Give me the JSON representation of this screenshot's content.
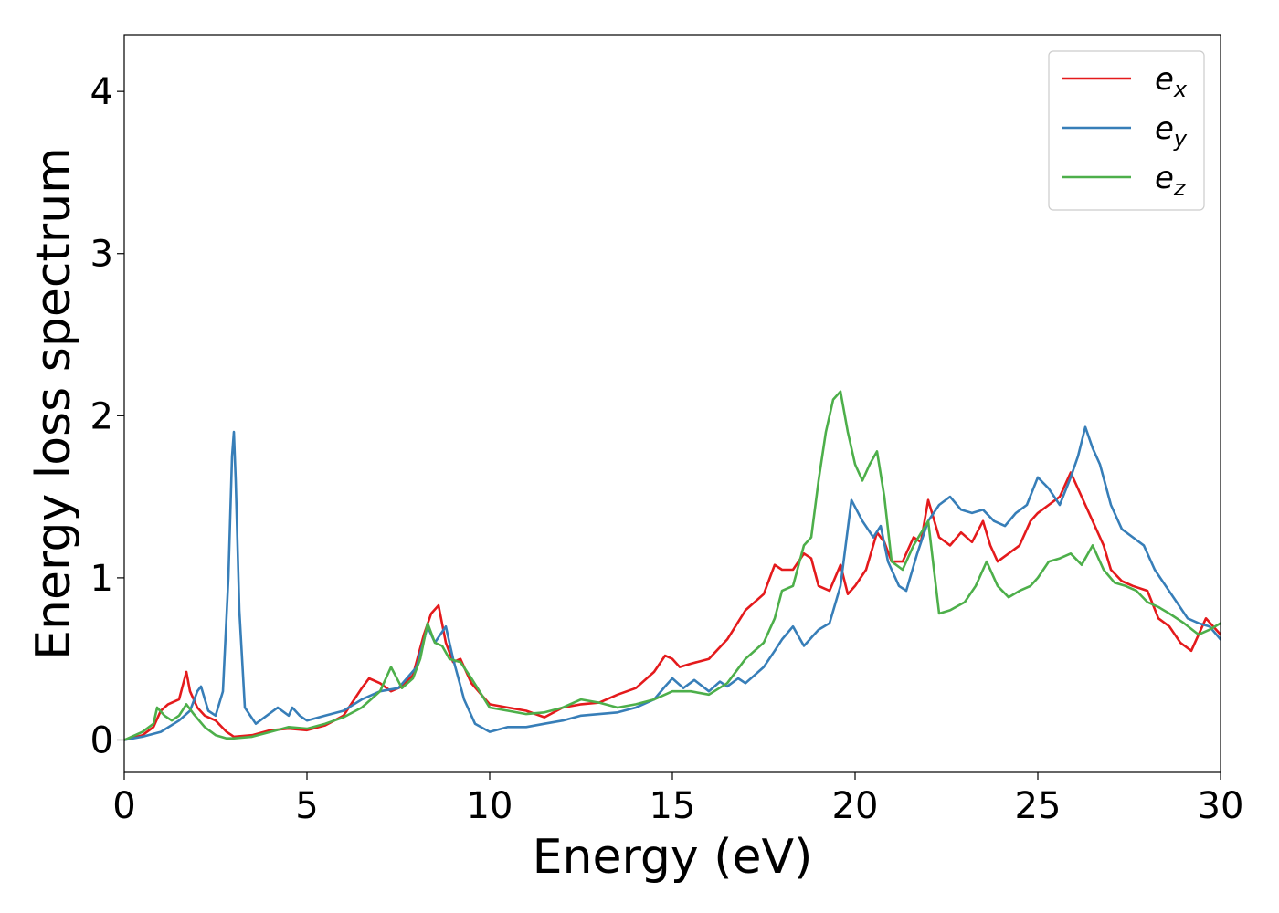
{
  "chart_data": {
    "type": "line",
    "title": "",
    "xlabel": "Energy (eV)",
    "ylabel": "Energy loss spectrum",
    "xlim": [
      0,
      30
    ],
    "ylim": [
      -0.2,
      4.35
    ],
    "xticks": [
      0,
      5,
      10,
      15,
      20,
      25,
      30
    ],
    "yticks": [
      0,
      1,
      2,
      3,
      4
    ],
    "grid": false,
    "legend": "top-right",
    "series": [
      {
        "name": "e",
        "sub": "x",
        "color": "#e41a1c",
        "x": [
          0,
          0.5,
          0.8,
          1.0,
          1.2,
          1.5,
          1.7,
          1.8,
          2.0,
          2.2,
          2.5,
          2.8,
          3.0,
          3.5,
          4.0,
          4.5,
          5.0,
          5.5,
          6.0,
          6.5,
          6.7,
          7.0,
          7.3,
          7.6,
          7.9,
          8.2,
          8.4,
          8.6,
          8.8,
          9.0,
          9.2,
          9.5,
          10.0,
          10.5,
          11.0,
          11.5,
          12.0,
          12.5,
          13.0,
          13.5,
          14.0,
          14.5,
          14.8,
          15.0,
          15.2,
          15.5,
          16.0,
          16.5,
          17.0,
          17.5,
          17.8,
          18.0,
          18.3,
          18.6,
          18.8,
          19.0,
          19.3,
          19.6,
          19.8,
          20.0,
          20.3,
          20.6,
          20.8,
          21.0,
          21.3,
          21.6,
          21.8,
          22.0,
          22.3,
          22.6,
          22.9,
          23.2,
          23.5,
          23.7,
          23.9,
          24.2,
          24.5,
          24.8,
          25.0,
          25.3,
          25.6,
          25.9,
          26.2,
          26.5,
          26.8,
          27.0,
          27.3,
          27.6,
          28.0,
          28.3,
          28.6,
          28.9,
          29.2,
          29.6,
          30.0
        ],
        "y": [
          0,
          0.03,
          0.08,
          0.18,
          0.22,
          0.25,
          0.42,
          0.3,
          0.2,
          0.15,
          0.12,
          0.05,
          0.02,
          0.03,
          0.06,
          0.07,
          0.06,
          0.09,
          0.15,
          0.32,
          0.38,
          0.35,
          0.3,
          0.33,
          0.4,
          0.65,
          0.78,
          0.83,
          0.6,
          0.48,
          0.5,
          0.35,
          0.22,
          0.2,
          0.18,
          0.14,
          0.2,
          0.22,
          0.23,
          0.28,
          0.32,
          0.42,
          0.52,
          0.5,
          0.45,
          0.47,
          0.5,
          0.62,
          0.8,
          0.9,
          1.08,
          1.05,
          1.05,
          1.15,
          1.12,
          0.95,
          0.92,
          1.08,
          0.9,
          0.95,
          1.05,
          1.28,
          1.22,
          1.1,
          1.1,
          1.25,
          1.22,
          1.48,
          1.25,
          1.2,
          1.28,
          1.22,
          1.35,
          1.2,
          1.1,
          1.15,
          1.2,
          1.35,
          1.4,
          1.45,
          1.5,
          1.65,
          1.5,
          1.35,
          1.2,
          1.05,
          0.98,
          0.95,
          0.92,
          0.75,
          0.7,
          0.6,
          0.55,
          0.75,
          0.65
        ]
      },
      {
        "name": "e",
        "sub": "y",
        "color": "#377eb8",
        "x": [
          0,
          0.5,
          1.0,
          1.5,
          1.8,
          2.0,
          2.1,
          2.3,
          2.5,
          2.7,
          2.85,
          2.95,
          3.0,
          3.05,
          3.15,
          3.3,
          3.6,
          3.9,
          4.2,
          4.5,
          4.6,
          4.8,
          5.0,
          5.5,
          6.0,
          6.5,
          7.0,
          7.5,
          8.0,
          8.3,
          8.5,
          8.8,
          9.0,
          9.3,
          9.6,
          10.0,
          10.5,
          11.0,
          11.5,
          12.0,
          12.5,
          13.0,
          13.5,
          14.0,
          14.5,
          14.8,
          15.0,
          15.3,
          15.6,
          16.0,
          16.3,
          16.5,
          16.8,
          17.0,
          17.5,
          17.8,
          18.0,
          18.3,
          18.6,
          19.0,
          19.3,
          19.6,
          19.9,
          20.2,
          20.5,
          20.7,
          20.9,
          21.2,
          21.4,
          21.7,
          22.0,
          22.3,
          22.6,
          22.9,
          23.2,
          23.5,
          23.8,
          24.1,
          24.4,
          24.7,
          25.0,
          25.3,
          25.6,
          25.9,
          26.1,
          26.3,
          26.5,
          26.7,
          27.0,
          27.3,
          27.6,
          27.9,
          28.2,
          28.5,
          28.8,
          29.1,
          29.4,
          29.7,
          30.0
        ],
        "y": [
          0,
          0.02,
          0.05,
          0.12,
          0.18,
          0.3,
          0.33,
          0.18,
          0.15,
          0.3,
          1.0,
          1.75,
          1.9,
          1.6,
          0.8,
          0.2,
          0.1,
          0.15,
          0.2,
          0.15,
          0.2,
          0.15,
          0.12,
          0.15,
          0.18,
          0.25,
          0.3,
          0.32,
          0.45,
          0.7,
          0.6,
          0.7,
          0.5,
          0.25,
          0.1,
          0.05,
          0.08,
          0.08,
          0.1,
          0.12,
          0.15,
          0.16,
          0.17,
          0.2,
          0.25,
          0.33,
          0.38,
          0.32,
          0.37,
          0.3,
          0.36,
          0.33,
          0.38,
          0.35,
          0.45,
          0.55,
          0.62,
          0.7,
          0.58,
          0.68,
          0.72,
          0.95,
          1.48,
          1.35,
          1.25,
          1.32,
          1.1,
          0.95,
          0.92,
          1.15,
          1.35,
          1.45,
          1.5,
          1.42,
          1.4,
          1.42,
          1.35,
          1.32,
          1.4,
          1.45,
          1.62,
          1.55,
          1.45,
          1.62,
          1.75,
          1.93,
          1.8,
          1.7,
          1.45,
          1.3,
          1.25,
          1.2,
          1.05,
          0.95,
          0.85,
          0.75,
          0.72,
          0.7,
          0.62
        ]
      },
      {
        "name": "e",
        "sub": "z",
        "color": "#4daf4a",
        "x": [
          0,
          0.5,
          0.8,
          0.9,
          1.1,
          1.3,
          1.5,
          1.7,
          1.9,
          2.2,
          2.5,
          2.8,
          3.0,
          3.5,
          4.0,
          4.5,
          5.0,
          5.5,
          6.0,
          6.5,
          7.0,
          7.3,
          7.6,
          7.9,
          8.1,
          8.3,
          8.5,
          8.7,
          8.9,
          9.2,
          9.5,
          10.0,
          10.5,
          11.0,
          11.5,
          12.0,
          12.5,
          13.0,
          13.5,
          14.0,
          14.5,
          15.0,
          15.5,
          16.0,
          16.5,
          17.0,
          17.5,
          17.8,
          18.0,
          18.3,
          18.6,
          18.8,
          19.0,
          19.2,
          19.4,
          19.6,
          19.8,
          20.0,
          20.2,
          20.4,
          20.6,
          20.8,
          21.0,
          21.3,
          21.6,
          22.0,
          22.3,
          22.6,
          23.0,
          23.3,
          23.6,
          23.9,
          24.2,
          24.5,
          24.8,
          25.0,
          25.3,
          25.6,
          25.9,
          26.2,
          26.5,
          26.8,
          27.1,
          27.4,
          27.7,
          28.0,
          28.3,
          28.6,
          29.0,
          29.4,
          29.7,
          30.0
        ],
        "y": [
          0,
          0.05,
          0.1,
          0.2,
          0.15,
          0.12,
          0.15,
          0.22,
          0.16,
          0.08,
          0.03,
          0.01,
          0.01,
          0.02,
          0.05,
          0.08,
          0.07,
          0.1,
          0.14,
          0.2,
          0.3,
          0.45,
          0.32,
          0.38,
          0.5,
          0.72,
          0.6,
          0.58,
          0.5,
          0.48,
          0.38,
          0.2,
          0.18,
          0.16,
          0.17,
          0.2,
          0.25,
          0.23,
          0.2,
          0.22,
          0.25,
          0.3,
          0.3,
          0.28,
          0.35,
          0.5,
          0.6,
          0.75,
          0.92,
          0.95,
          1.2,
          1.25,
          1.6,
          1.9,
          2.1,
          2.15,
          1.9,
          1.7,
          1.6,
          1.7,
          1.78,
          1.5,
          1.1,
          1.05,
          1.2,
          1.35,
          0.78,
          0.8,
          0.85,
          0.95,
          1.1,
          0.95,
          0.88,
          0.92,
          0.95,
          1.0,
          1.1,
          1.12,
          1.15,
          1.08,
          1.2,
          1.05,
          0.97,
          0.95,
          0.92,
          0.85,
          0.82,
          0.78,
          0.72,
          0.65,
          0.68,
          0.72
        ]
      }
    ]
  }
}
